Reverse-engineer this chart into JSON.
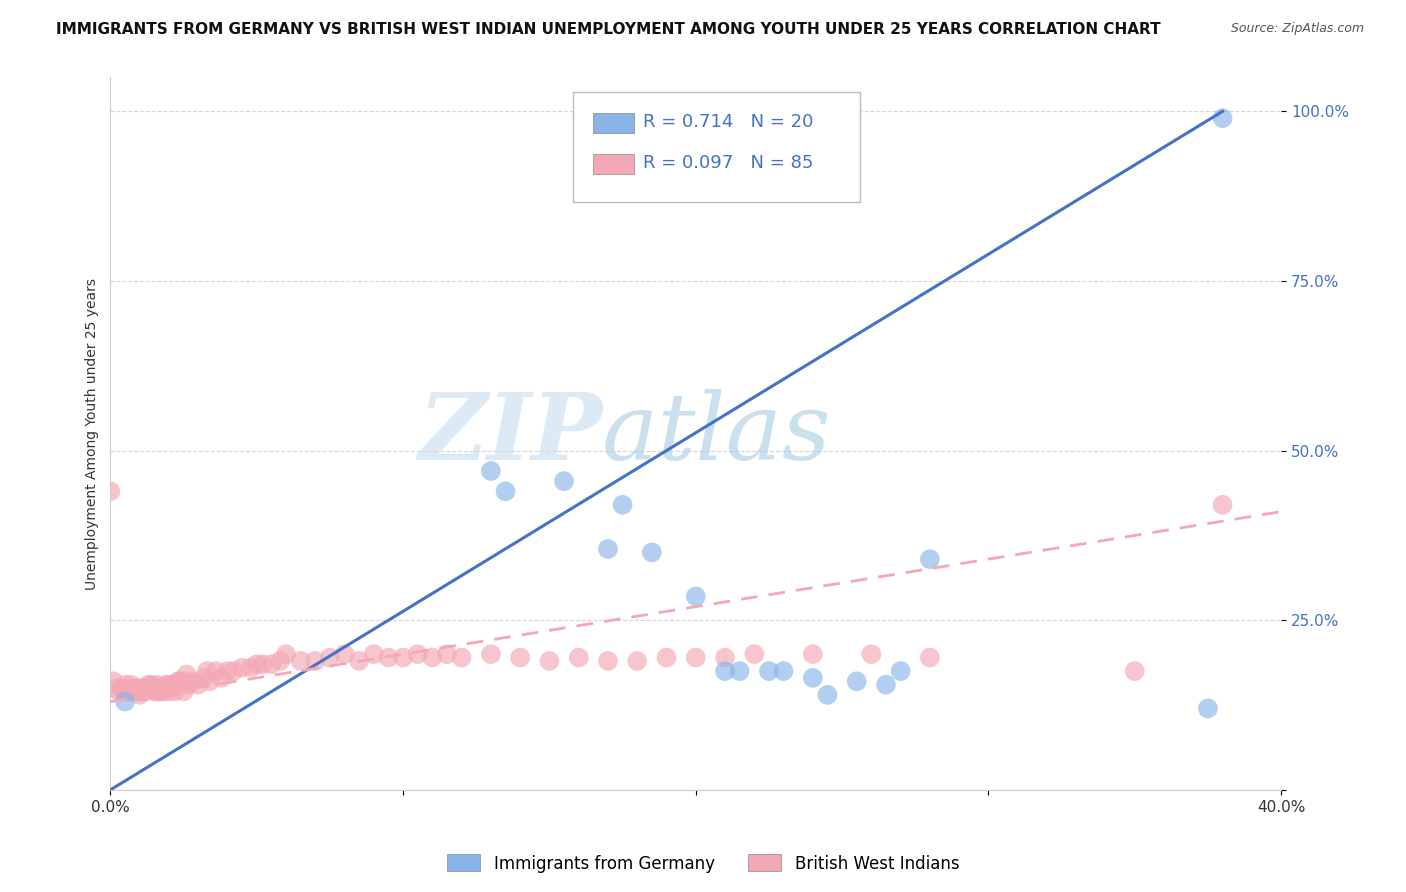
{
  "title": "IMMIGRANTS FROM GERMANY VS BRITISH WEST INDIAN UNEMPLOYMENT AMONG YOUTH UNDER 25 YEARS CORRELATION CHART",
  "source": "Source: ZipAtlas.com",
  "ylabel": "Unemployment Among Youth under 25 years",
  "xlim": [
    0.0,
    0.4
  ],
  "ylim": [
    0.0,
    1.05
  ],
  "xticks": [
    0.0,
    0.1,
    0.2,
    0.3,
    0.4
  ],
  "xticklabels": [
    "0.0%",
    "",
    "",
    "",
    "40.0%"
  ],
  "yticks": [
    0.0,
    0.25,
    0.5,
    0.75,
    1.0
  ],
  "yticklabels": [
    "",
    "25.0%",
    "50.0%",
    "75.0%",
    "100.0%"
  ],
  "blue_R": "0.714",
  "blue_N": "20",
  "pink_R": "0.097",
  "pink_N": "85",
  "legend_label_blue": "Immigrants from Germany",
  "legend_label_pink": "British West Indians",
  "watermark_zip": "ZIP",
  "watermark_atlas": "atlas",
  "background_color": "#ffffff",
  "blue_color": "#89b4e8",
  "pink_color": "#f4a7b5",
  "blue_line_color": "#4472c4",
  "pink_line_color": "#f4a7b5",
  "title_fontsize": 11,
  "axis_label_fontsize": 10,
  "tick_fontsize": 11,
  "blue_scatter": {
    "x": [
      0.005,
      0.13,
      0.135,
      0.155,
      0.17,
      0.175,
      0.185,
      0.2,
      0.21,
      0.215,
      0.225,
      0.23,
      0.24,
      0.245,
      0.255,
      0.265,
      0.27,
      0.28,
      0.375,
      0.38
    ],
    "y": [
      0.13,
      0.47,
      0.44,
      0.455,
      0.355,
      0.42,
      0.35,
      0.285,
      0.175,
      0.175,
      0.175,
      0.175,
      0.165,
      0.14,
      0.16,
      0.155,
      0.175,
      0.34,
      0.12,
      0.99
    ]
  },
  "pink_scatter": {
    "x": [
      0.0,
      0.001,
      0.002,
      0.003,
      0.004,
      0.005,
      0.005,
      0.006,
      0.007,
      0.007,
      0.008,
      0.008,
      0.009,
      0.009,
      0.01,
      0.01,
      0.011,
      0.011,
      0.012,
      0.012,
      0.013,
      0.013,
      0.014,
      0.015,
      0.015,
      0.016,
      0.016,
      0.017,
      0.018,
      0.018,
      0.019,
      0.02,
      0.02,
      0.021,
      0.022,
      0.022,
      0.023,
      0.024,
      0.025,
      0.025,
      0.026,
      0.027,
      0.028,
      0.03,
      0.032,
      0.033,
      0.034,
      0.036,
      0.038,
      0.04,
      0.042,
      0.045,
      0.048,
      0.05,
      0.052,
      0.055,
      0.058,
      0.06,
      0.065,
      0.07,
      0.075,
      0.08,
      0.085,
      0.09,
      0.095,
      0.1,
      0.105,
      0.11,
      0.115,
      0.12,
      0.13,
      0.14,
      0.15,
      0.16,
      0.17,
      0.18,
      0.19,
      0.2,
      0.21,
      0.22,
      0.24,
      0.26,
      0.28,
      0.35,
      0.38
    ],
    "y": [
      0.44,
      0.16,
      0.15,
      0.145,
      0.15,
      0.145,
      0.155,
      0.145,
      0.145,
      0.155,
      0.145,
      0.15,
      0.145,
      0.15,
      0.14,
      0.145,
      0.145,
      0.15,
      0.145,
      0.15,
      0.15,
      0.155,
      0.155,
      0.145,
      0.15,
      0.145,
      0.155,
      0.145,
      0.145,
      0.15,
      0.155,
      0.145,
      0.155,
      0.155,
      0.145,
      0.155,
      0.16,
      0.16,
      0.145,
      0.16,
      0.17,
      0.155,
      0.16,
      0.155,
      0.165,
      0.175,
      0.16,
      0.175,
      0.165,
      0.175,
      0.175,
      0.18,
      0.18,
      0.185,
      0.185,
      0.185,
      0.19,
      0.2,
      0.19,
      0.19,
      0.195,
      0.2,
      0.19,
      0.2,
      0.195,
      0.195,
      0.2,
      0.195,
      0.2,
      0.195,
      0.2,
      0.195,
      0.19,
      0.195,
      0.19,
      0.19,
      0.195,
      0.195,
      0.195,
      0.2,
      0.2,
      0.2,
      0.195,
      0.175,
      0.42
    ]
  },
  "blue_line": {
    "x0": 0.0,
    "x1": 0.38,
    "y0": 0.0,
    "y1": 1.0
  },
  "pink_line": {
    "x0": 0.0,
    "x1": 0.4,
    "y0": 0.13,
    "y1": 0.41
  }
}
